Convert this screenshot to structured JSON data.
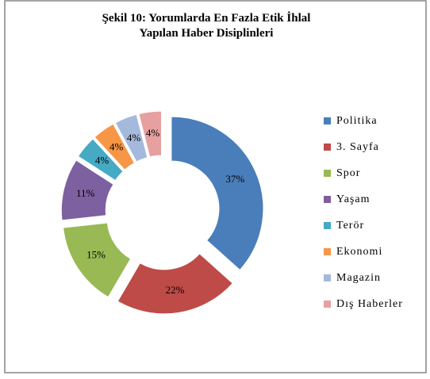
{
  "chart_data": {
    "type": "donut",
    "title": "Şekil 10: Yorumlarda En Fazla Etik İhlal Yapılan Haber Disiplinleri",
    "categories": [
      "Politika",
      "3. Sayfa",
      "Spor",
      "Yaşam",
      "Terör",
      "Ekonomi",
      "Magazin",
      "Dış Haberler"
    ],
    "values": [
      37,
      22,
      15,
      11,
      4,
      4,
      4,
      4
    ],
    "value_labels": [
      "37%",
      "22%",
      "15%",
      "11%",
      "4%",
      "4%",
      "4%",
      "4%"
    ],
    "colors": [
      "#4a7ebb",
      "#be4b48",
      "#98b954",
      "#7d60a0",
      "#46aac5",
      "#f79646",
      "#a5b9dc",
      "#e6a0a0"
    ],
    "legend": "right"
  }
}
